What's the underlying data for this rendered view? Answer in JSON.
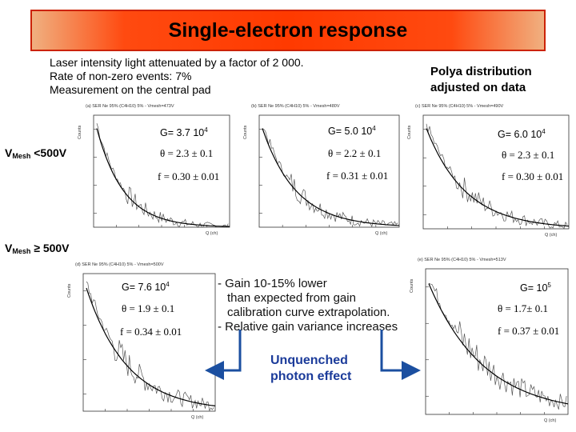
{
  "title": "Single-electron response",
  "intro": {
    "line1": "Laser intensity light attenuated by a factor of 2 000.",
    "line2": "Rate of non-zero events: 7%",
    "line3": "Measurement on the central pad"
  },
  "polya": {
    "line1": "Polya distribution",
    "line2": "adjusted on data"
  },
  "mesh_below": {
    "v": "V",
    "sub": "Mesh",
    "rest": " <500V"
  },
  "mesh_above": {
    "v": "V",
    "sub": "Mesh",
    "rest": " ≥ 500V"
  },
  "plots": [
    {
      "id": "a",
      "header": "(a) SER Ne 95% (C4H10) 5% - Vmesh=473V",
      "gain_base": "G= 3.7 10",
      "gain_exp": "4",
      "theta": "θ = 2.3 ± 0.1",
      "f": "f = 0.30 ± 0.01",
      "ylabel": "Counts",
      "xlabel": "Q (ch)"
    },
    {
      "id": "b",
      "header": "(b) SER Ne 95% (C4H10) 5% - Vmesh=480V",
      "gain_base": "G= 5.0 10",
      "gain_exp": "4",
      "theta": "θ = 2.2 ± 0.1",
      "f": "f = 0.31 ± 0.01",
      "ylabel": "Counts",
      "xlabel": "Q (ch)"
    },
    {
      "id": "c",
      "header": "(c) SER Ne 95% (C4H10) 5% - Vmesh=490V",
      "gain_base": "G= 6.0 10",
      "gain_exp": "4",
      "theta": "θ = 2.3 ± 0.1",
      "f": "f = 0.30 ± 0.01",
      "ylabel": "Counts",
      "xlabel": "Q (ch)"
    },
    {
      "id": "d",
      "header": "(d) SER Ne 95% (C4H10) 5% - Vmesh=500V",
      "gain_base": "G= 7.6 10",
      "gain_exp": "4",
      "theta": "θ = 1.9 ± 0.1",
      "f": "f = 0.34 ± 0.01",
      "ylabel": "Counts",
      "xlabel": "Q (ch)"
    },
    {
      "id": "e",
      "header": "(e) SER Ne 95% (C4H10) 5% - Vmesh=513V",
      "gain_base": "G= 10",
      "gain_exp": "5",
      "theta": "θ = 1.7± 0.1",
      "f": "f = 0.37 ± 0.01",
      "ylabel": "Counts",
      "xlabel": "Q (ch)"
    }
  ],
  "comments": {
    "line1": "- Gain 10-15% lower",
    "line2": "than expected from gain",
    "line3": "calibration curve extrapolation.",
    "line4": "- Relative gain variance increases"
  },
  "unquenched": {
    "line1": "Unquenched",
    "line2": "photon effect"
  },
  "colors": {
    "title_bg": "#ff3a00",
    "arrow": "#1b4fa0",
    "unquenched_text": "#1b3b9a"
  }
}
